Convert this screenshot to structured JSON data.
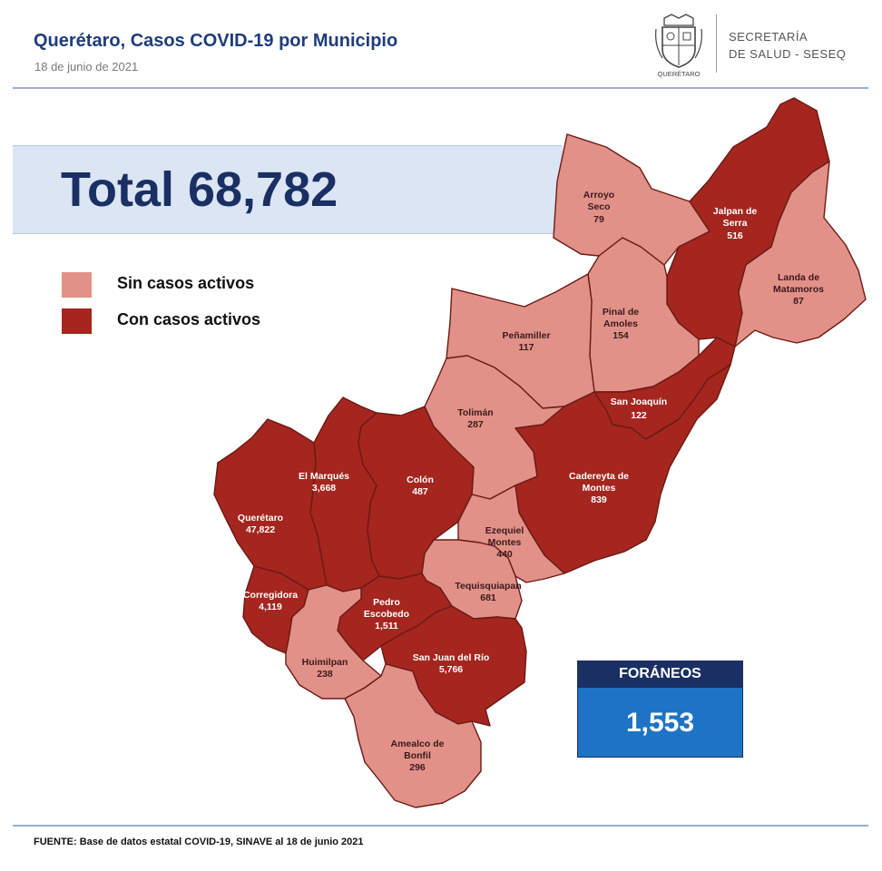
{
  "header": {
    "title": "Querétaro, Casos COVID-19 por Municipio",
    "date": "18 de junio  de 2021",
    "org_line1": "SECRETARÍA",
    "org_line2": "DE SALUD - SESEQ",
    "seal_text": "QUERÉTARO"
  },
  "total": {
    "label": "Total 68,782"
  },
  "legend": [
    {
      "label": "Sin casos activos",
      "color": "#e29189"
    },
    {
      "label": "Con casos activos",
      "color": "#a4261f"
    }
  ],
  "colors": {
    "no_active": "#e29189",
    "active": "#a4261f",
    "border": "#6b1a15",
    "navy": "#1a2f63",
    "blue": "#1e73c4"
  },
  "municipalities": [
    {
      "name": "Arroyo Seco",
      "cases": "79",
      "status": "no_active"
    },
    {
      "name": "Jalpan de Serra",
      "cases": "516",
      "status": "active"
    },
    {
      "name": "Landa de Matamoros",
      "cases": "87",
      "status": "no_active"
    },
    {
      "name": "Pinal de Amoles",
      "cases": "154",
      "status": "no_active"
    },
    {
      "name": "Peñamiller",
      "cases": "117",
      "status": "no_active"
    },
    {
      "name": "San Joaquín",
      "cases": "122",
      "status": "active"
    },
    {
      "name": "Tolimán",
      "cases": "287",
      "status": "no_active"
    },
    {
      "name": "Cadereyta de Montes",
      "cases": "839",
      "status": "active"
    },
    {
      "name": "El Marqués",
      "cases": "3,668",
      "status": "active"
    },
    {
      "name": "Colón",
      "cases": "487",
      "status": "active"
    },
    {
      "name": "Querétaro",
      "cases": "47,822",
      "status": "active"
    },
    {
      "name": "Ezequiel Montes",
      "cases": "440",
      "status": "no_active"
    },
    {
      "name": "Tequisquiapan",
      "cases": "681",
      "status": "no_active"
    },
    {
      "name": "Corregidora",
      "cases": "4,119",
      "status": "active"
    },
    {
      "name": "Pedro Escobedo",
      "cases": "1,511",
      "status": "active"
    },
    {
      "name": "Huimilpan",
      "cases": "238",
      "status": "no_active"
    },
    {
      "name": "San Juan del Río",
      "cases": "5,766",
      "status": "active"
    },
    {
      "name": "Amealco de Bonfil",
      "cases": "296",
      "status": "no_active"
    }
  ],
  "foraneos": {
    "label": "FORÁNEOS",
    "value": "1,553"
  },
  "footer": {
    "source": "FUENTE:  Base de datos estatal COVID-19,  SINAVE  al 18 de junio  2021"
  }
}
